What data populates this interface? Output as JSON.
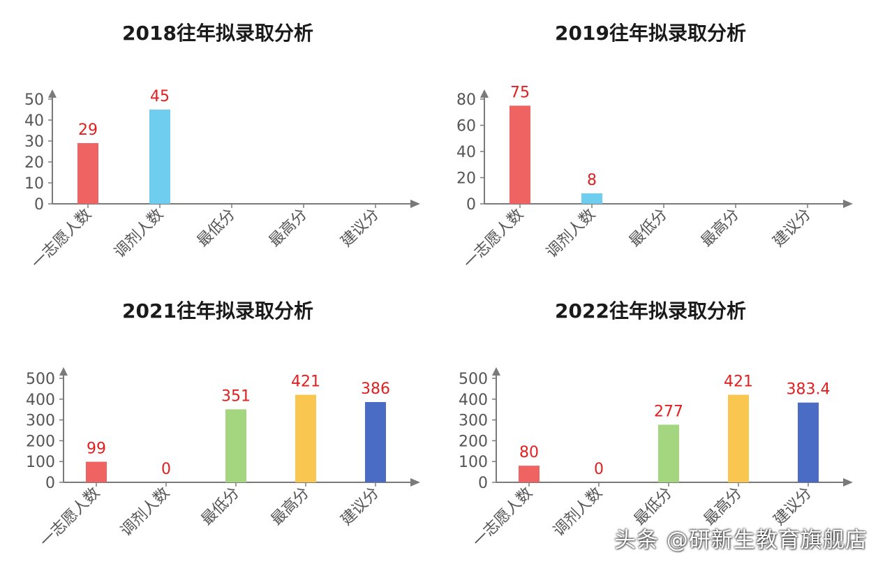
{
  "chart_data": [
    {
      "type": "bar",
      "title": "2018往年拟录取分析",
      "categories": [
        "一志愿人数",
        "调剂人数",
        "最低分",
        "最高分",
        "建议分"
      ],
      "values": [
        29,
        45,
        null,
        null,
        null
      ],
      "value_labels": [
        "29",
        "45",
        "",
        "",
        ""
      ],
      "colors": [
        "#ef6363",
        "#6fcdf0",
        "#a3d67f",
        "#f9c74f",
        "#4a6cc4"
      ],
      "yticks": [
        0,
        10,
        20,
        30,
        40,
        50
      ],
      "ylim": [
        0,
        55
      ],
      "grid": false,
      "legend": "none"
    },
    {
      "type": "bar",
      "title": "2019往年拟录取分析",
      "categories": [
        "一志愿人数",
        "调剂人数",
        "最低分",
        "最高分",
        "建议分"
      ],
      "values": [
        75,
        8,
        null,
        null,
        null
      ],
      "value_labels": [
        "75",
        "8",
        "",
        "",
        ""
      ],
      "colors": [
        "#ef6363",
        "#6fcdf0",
        "#a3d67f",
        "#f9c74f",
        "#4a6cc4"
      ],
      "yticks": [
        0,
        20,
        40,
        60,
        80
      ],
      "ylim": [
        0,
        88
      ],
      "grid": false,
      "legend": "none"
    },
    {
      "type": "bar",
      "title": "2021往年拟录取分析",
      "categories": [
        "一志愿人数",
        "调剂人数",
        "最低分",
        "最高分",
        "建议分"
      ],
      "values": [
        99,
        0,
        351,
        421,
        386
      ],
      "value_labels": [
        "99",
        "0",
        "351",
        "421",
        "386"
      ],
      "colors": [
        "#ef6363",
        "#6fcdf0",
        "#a3d67f",
        "#f9c74f",
        "#4a6cc4"
      ],
      "yticks": [
        0,
        100,
        200,
        300,
        400,
        500
      ],
      "ylim": [
        0,
        550
      ],
      "grid": false,
      "legend": "none"
    },
    {
      "type": "bar",
      "title": "2022往年拟录取分析",
      "categories": [
        "一志愿人数",
        "调剂人数",
        "最低分",
        "最高分",
        "建议分"
      ],
      "values": [
        80,
        0,
        277,
        421,
        383.4
      ],
      "value_labels": [
        "80",
        "0",
        "277",
        "421",
        "383.4"
      ],
      "colors": [
        "#ef6363",
        "#6fcdf0",
        "#a3d67f",
        "#f9c74f",
        "#4a6cc4"
      ],
      "yticks": [
        0,
        100,
        200,
        300,
        400,
        500
      ],
      "ylim": [
        0,
        550
      ],
      "grid": false,
      "legend": "none"
    }
  ],
  "watermark": "头条 @研新生教育旗舰店",
  "style": {
    "title_color": "#1a1a1a",
    "axis_color": "#7a7a7a",
    "tick_label_color": "#555555",
    "value_label_color": "#e02020"
  }
}
